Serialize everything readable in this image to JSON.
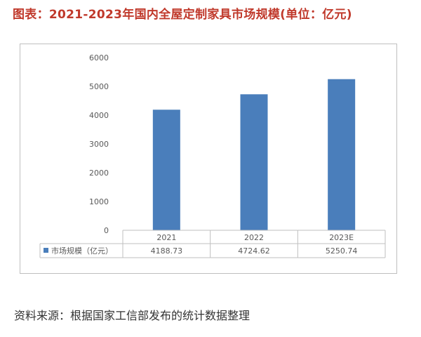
{
  "header": {
    "title": "图表：2021-2023年国内全屋定制家具市场规模(单位：亿元)"
  },
  "footer": {
    "source": "资料来源：根据国家工信部发布的统计数据整理"
  },
  "chart_data": {
    "type": "bar",
    "categories": [
      "2021",
      "2022",
      "2023E"
    ],
    "series": [
      {
        "name": "市场规模（亿元）",
        "values": [
          4188.73,
          4724.62,
          5250.74
        ],
        "color": "#4a7ebb"
      }
    ],
    "value_labels": [
      "4188.73",
      "4724.62",
      "5250.74"
    ],
    "yticks": [
      "0",
      "1000",
      "2000",
      "3000",
      "4000",
      "5000",
      "6000"
    ],
    "ylim": [
      0,
      6000
    ],
    "grid": false,
    "legend": "data-table-left",
    "colors": {
      "bar": "#4a7ebb",
      "axis": "#bfbfbf",
      "text": "#595959",
      "title": "#c0392b"
    }
  }
}
